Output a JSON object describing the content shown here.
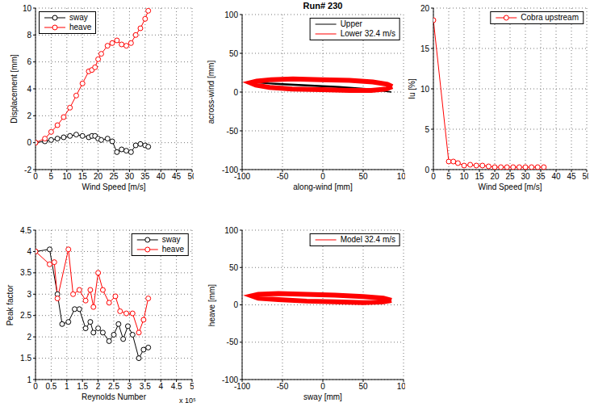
{
  "chart_data": [
    {
      "type": "line",
      "xlabel": "Wind Speed [m/s]",
      "ylabel": "Displacement [mm]",
      "xlim": [
        0,
        50
      ],
      "xticks": [
        0,
        5,
        10,
        15,
        20,
        25,
        30,
        35,
        40,
        45,
        50
      ],
      "ylim": [
        -2,
        10
      ],
      "yticks": [
        -2,
        0,
        2,
        4,
        6,
        8,
        10
      ],
      "grid": true,
      "legend": "upper left",
      "series": [
        {
          "name": "sway",
          "color": "#000000",
          "marker": "o",
          "x": [
            0,
            3,
            5,
            7,
            9,
            11,
            13,
            15,
            17,
            18,
            19,
            20,
            21,
            23,
            24.5,
            26,
            27.5,
            29,
            30.5,
            32,
            33.5,
            35,
            36
          ],
          "values": [
            0,
            0.1,
            0.2,
            0.3,
            0.4,
            0.5,
            0.6,
            0.5,
            0.4,
            0.5,
            0.5,
            0.3,
            0.2,
            0.3,
            0.1,
            -0.7,
            -0.5,
            -0.6,
            -0.7,
            -0.2,
            -0.1,
            -0.2,
            -0.3
          ]
        },
        {
          "name": "heave",
          "color": "#ff0000",
          "marker": "o",
          "x": [
            0,
            3,
            5,
            7,
            9,
            11,
            13,
            15,
            17,
            18,
            19,
            20,
            21,
            23,
            24.5,
            26,
            27.5,
            29,
            30.5,
            32,
            33.5,
            35,
            36
          ],
          "values": [
            0,
            0.3,
            0.8,
            1.3,
            1.9,
            2.6,
            3.5,
            4.4,
            5.3,
            5.4,
            5.6,
            6.2,
            6.6,
            7.2,
            7.4,
            7.6,
            7.3,
            7.2,
            7.4,
            8.0,
            8.5,
            9.2,
            9.8
          ]
        }
      ]
    },
    {
      "type": "line",
      "title": "Run# 230",
      "xlabel": "along-wind [mm]",
      "ylabel": "across-wind [mm]",
      "xlim": [
        -100,
        100
      ],
      "xticks": [
        -100,
        -50,
        0,
        50,
        100
      ],
      "ylim": [
        -100,
        100
      ],
      "yticks": [
        -100,
        -50,
        0,
        50,
        100
      ],
      "grid": true,
      "legend": "upper right",
      "series": [
        {
          "name": "Upper",
          "color": "#000000",
          "x": [
            85,
            60,
            20,
            -20,
            -55,
            -80,
            -55,
            -20,
            20,
            60,
            85
          ],
          "values": [
            0,
            3,
            6,
            8,
            10,
            12,
            11,
            9,
            7,
            4,
            0
          ]
        },
        {
          "name": "Lower 32.4 m/s",
          "color": "#ff0000",
          "x": [
            86,
            80,
            62,
            33,
            -2,
            -37,
            -64,
            -82,
            -90,
            -83,
            -66,
            -38,
            -2,
            33,
            60,
            79,
            86
          ],
          "values": [
            7,
            10,
            13,
            15,
            16,
            17,
            16,
            14,
            12,
            9,
            6,
            4,
            3,
            2,
            2,
            4,
            7
          ]
        }
      ]
    },
    {
      "type": "line",
      "xlabel": "Wind Speed [m/s]",
      "ylabel": "Iu [%]",
      "xlim": [
        0,
        50
      ],
      "xticks": [
        0,
        5,
        10,
        15,
        20,
        25,
        30,
        35,
        40,
        45,
        50
      ],
      "ylim": [
        0,
        20
      ],
      "yticks": [
        0,
        5,
        10,
        15,
        20
      ],
      "grid": true,
      "legend": "upper right",
      "series": [
        {
          "name": "Cobra upstream",
          "color": "#ff0000",
          "marker": "o",
          "x": [
            0,
            5,
            6.5,
            8,
            10,
            12,
            14,
            16,
            18,
            20,
            22,
            24,
            26,
            28,
            30,
            32,
            34,
            36
          ],
          "values": [
            18.5,
            1.0,
            1.0,
            0.8,
            0.5,
            0.6,
            0.5,
            0.5,
            0.4,
            0.3,
            0.3,
            0.3,
            0.3,
            0.3,
            0.3,
            0.3,
            0.3,
            0.3
          ]
        }
      ]
    },
    {
      "type": "line",
      "xlabel": "Reynolds Number",
      "ylabel": "Peak factor",
      "annotation": "x 10⁵",
      "xlim": [
        0,
        5
      ],
      "xticks": [
        0,
        0.5,
        1,
        1.5,
        2,
        2.5,
        3,
        3.5,
        4,
        4.5,
        5
      ],
      "ylim": [
        1,
        4.5
      ],
      "yticks": [
        1,
        1.5,
        2,
        2.5,
        3,
        3.5,
        4,
        4.5
      ],
      "grid": true,
      "legend": "upper right",
      "series": [
        {
          "name": "sway",
          "color": "#000000",
          "marker": "o",
          "x": [
            0,
            0.45,
            0.7,
            0.85,
            1.05,
            1.25,
            1.4,
            1.6,
            1.75,
            1.85,
            2.0,
            2.15,
            2.35,
            2.5,
            2.65,
            2.8,
            2.95,
            3.1,
            3.3,
            3.45,
            3.6
          ],
          "values": [
            4.0,
            4.05,
            3.0,
            2.3,
            2.35,
            2.65,
            2.65,
            2.2,
            2.35,
            2.1,
            2.2,
            2.1,
            1.9,
            2.05,
            2.3,
            1.95,
            2.25,
            2.05,
            1.5,
            1.7,
            1.75
          ]
        },
        {
          "name": "heave",
          "color": "#ff0000",
          "marker": "o",
          "x": [
            0,
            0.45,
            0.6,
            0.7,
            1.05,
            1.2,
            1.4,
            1.6,
            1.75,
            1.85,
            2.0,
            2.15,
            2.35,
            2.55,
            2.7,
            2.9,
            3.1,
            3.3,
            3.45,
            3.6
          ],
          "values": [
            4.0,
            3.7,
            3.75,
            2.9,
            4.05,
            3.0,
            3.1,
            2.85,
            3.1,
            2.7,
            3.5,
            3.1,
            2.8,
            2.95,
            2.6,
            2.55,
            2.55,
            2.1,
            2.4,
            2.9
          ]
        }
      ]
    },
    {
      "type": "line",
      "xlabel": "sway [mm]",
      "ylabel": "heave [mm]",
      "xlim": [
        -100,
        100
      ],
      "xticks": [
        -100,
        -50,
        0,
        50,
        100
      ],
      "ylim": [
        -100,
        100
      ],
      "yticks": [
        -100,
        -50,
        0,
        50,
        100
      ],
      "grid": true,
      "legend": "upper right",
      "series": [
        {
          "name": "Model 32.4 m/s",
          "color": "#ff0000",
          "x": [
            85,
            75,
            50,
            15,
            -20,
            -55,
            -80,
            -88,
            -80,
            -55,
            -20,
            15,
            50,
            75,
            85
          ],
          "values": [
            6,
            9,
            11,
            13,
            14,
            15,
            14,
            12,
            9,
            7,
            5,
            4,
            3,
            4,
            6
          ]
        }
      ]
    }
  ]
}
